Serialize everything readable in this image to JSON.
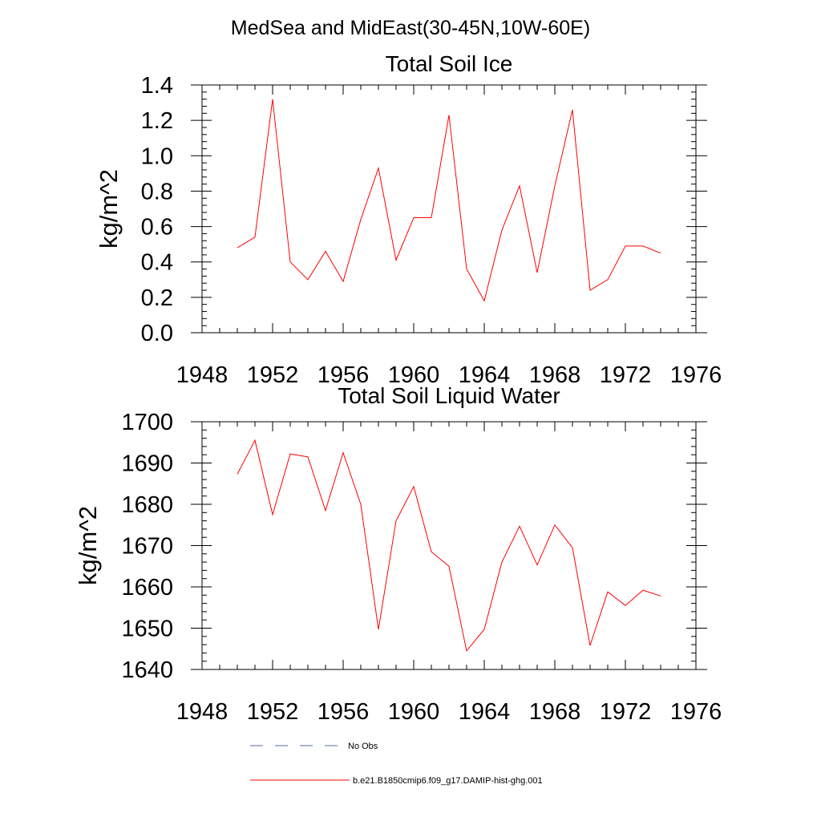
{
  "figure": {
    "title": "MedSea and MidEast(30-45N,10W-60E)"
  },
  "chart_data": [
    {
      "type": "line",
      "title": "Total Soil Ice",
      "xlabel": "",
      "ylabel": "kg/m^2",
      "xlim": [
        1948,
        1976
      ],
      "ylim": [
        0.0,
        1.4
      ],
      "xticks": [
        1948,
        1952,
        1956,
        1960,
        1964,
        1968,
        1972,
        1976
      ],
      "xtick_labels": [
        "1948",
        "1952",
        "1956",
        "1960",
        "1964",
        "1968",
        "1972",
        "1976"
      ],
      "yticks": [
        0.0,
        0.2,
        0.4,
        0.6,
        0.8,
        1.0,
        1.2,
        1.4
      ],
      "ytick_labels": [
        "0.0",
        "0.2",
        "0.4",
        "0.6",
        "0.8",
        "1.0",
        "1.2",
        "1.4"
      ],
      "grid": false,
      "series": [
        {
          "name": "b.e21.B1850cmip6.f09_g17.DAMIP-hist-ghg.001",
          "color": "#ff0000",
          "x": [
            1950,
            1951,
            1952,
            1953,
            1954,
            1955,
            1956,
            1957,
            1958,
            1959,
            1960,
            1961,
            1962,
            1963,
            1964,
            1965,
            1966,
            1967,
            1968,
            1969,
            1970,
            1971,
            1972,
            1973,
            1974
          ],
          "y": [
            0.48,
            0.54,
            1.32,
            0.4,
            0.3,
            0.46,
            0.29,
            0.64,
            0.93,
            0.41,
            0.65,
            0.65,
            1.23,
            0.36,
            0.18,
            0.58,
            0.83,
            0.34,
            0.83,
            1.26,
            0.24,
            0.3,
            0.49,
            0.49,
            0.45
          ]
        }
      ]
    },
    {
      "type": "line",
      "title": "Total Soil Liquid Water",
      "xlabel": "",
      "ylabel": "kg/m^2",
      "xlim": [
        1948,
        1976
      ],
      "ylim": [
        1640,
        1700
      ],
      "xticks": [
        1948,
        1952,
        1956,
        1960,
        1964,
        1968,
        1972,
        1976
      ],
      "xtick_labels": [
        "1948",
        "1952",
        "1956",
        "1960",
        "1964",
        "1968",
        "1972",
        "1976"
      ],
      "yticks": [
        1640,
        1650,
        1660,
        1670,
        1680,
        1690,
        1700
      ],
      "ytick_labels": [
        "1640",
        "1650",
        "1660",
        "1670",
        "1680",
        "1690",
        "1700"
      ],
      "grid": false,
      "series": [
        {
          "name": "b.e21.B1850cmip6.f09_g17.DAMIP-hist-ghg.001",
          "color": "#ff0000",
          "x": [
            1950,
            1951,
            1952,
            1953,
            1954,
            1955,
            1956,
            1957,
            1958,
            1959,
            1960,
            1961,
            1962,
            1963,
            1964,
            1965,
            1966,
            1967,
            1968,
            1969,
            1970,
            1971,
            1972,
            1973,
            1974
          ],
          "y": [
            1687.3,
            1695.5,
            1677.5,
            1692.2,
            1691.5,
            1678.5,
            1692.5,
            1680.0,
            1649.7,
            1676.0,
            1684.3,
            1668.5,
            1665.0,
            1644.5,
            1649.7,
            1666.0,
            1674.7,
            1665.3,
            1675.0,
            1669.5,
            1645.8,
            1658.8,
            1655.5,
            1659.2,
            1657.8
          ]
        }
      ]
    }
  ],
  "legend": {
    "placement": "bottom-center",
    "entries": [
      {
        "label": "No Obs",
        "color": "#5a6ba0",
        "style": "dashed"
      },
      {
        "label": "b.e21.B1850cmip6.f09_g17.DAMIP-hist-ghg.001",
        "color": "#ff0000",
        "style": "solid"
      }
    ]
  }
}
